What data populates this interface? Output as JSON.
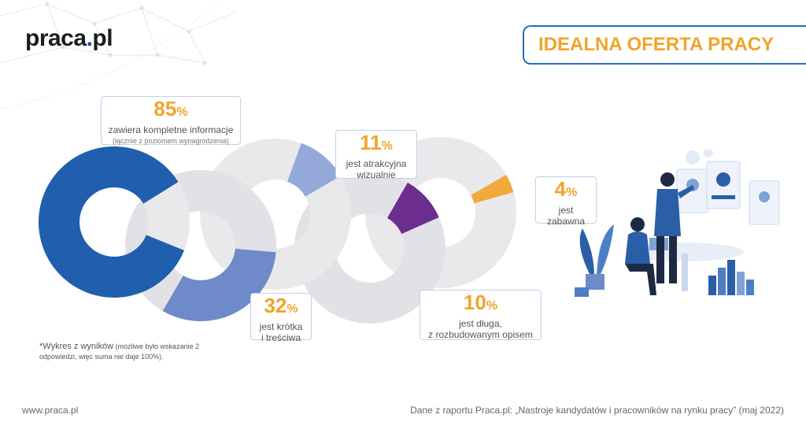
{
  "logo": {
    "name": "praca",
    "dot": ".",
    "tld": "pl"
  },
  "title": "IDEALNA OFERTA PRACY",
  "chart_data": {
    "type": "pie",
    "title": "IDEALNA OFERTA PRACY",
    "unit": "%",
    "series": [
      {
        "name": "kompletne",
        "value": 85,
        "color": "#1f5fad",
        "pct_label": "85",
        "line1": "zawiera kompletne informacje",
        "line2": "(łącznie z poziomem wynagrodzenia)"
      },
      {
        "name": "krotka",
        "value": 32,
        "color": "#6f8ac8",
        "pct_label": "32",
        "line1": "jest krótka",
        "line2": "i treściwa"
      },
      {
        "name": "atrakcyjna",
        "value": 11,
        "color": "#94a9da",
        "pct_label": "11",
        "line1": "jest atrakcyjna",
        "line2": "wizualnie"
      },
      {
        "name": "dluga",
        "value": 10,
        "color": "#6b2d8e",
        "pct_label": "10",
        "line1": "jest długa,",
        "line2": "z rozbudowanym opisem"
      },
      {
        "name": "zabawna",
        "value": 4,
        "color": "#f2a93b",
        "pct_label": "4",
        "line1": "jest",
        "line2": "zabawna"
      }
    ]
  },
  "footnote": {
    "main": "*Wykres z wyników",
    "detail": "(możliwe było wskazanie 2 odpowiedzi, więc suma nie daje 100%)."
  },
  "footer": {
    "website": "www.praca.pl",
    "source": "Dane z raportu Praca.pl: „Nastroje kandydatów i pracowników na rynku pracy” (maj 2022)"
  }
}
